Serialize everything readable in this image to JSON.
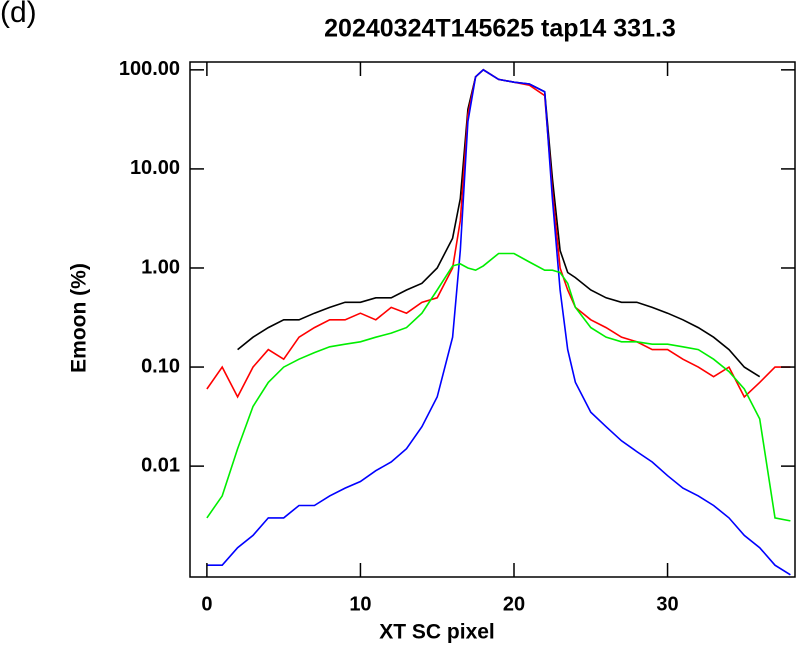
{
  "panel_label": "(d)",
  "chart_data": {
    "type": "line",
    "title": "20240324T145625 tap14  331.3",
    "x_label": "XT SC pixel",
    "y_label": "Emoon (%)",
    "log_y": true,
    "xlim": [
      -1.1,
      38.3
    ],
    "ylim": [
      0.00076,
      120
    ],
    "xticks": [
      0,
      10,
      20,
      30
    ],
    "yticks": [
      {
        "value": 100,
        "label": "100.00"
      },
      {
        "value": 10,
        "label": "10.00"
      },
      {
        "value": 1,
        "label": "1.00"
      },
      {
        "value": 0.1,
        "label": "0.10"
      },
      {
        "value": 0.01,
        "label": "0.01"
      }
    ],
    "x": [
      0,
      1,
      2,
      3,
      4,
      5,
      6,
      7,
      8,
      9,
      10,
      11,
      12,
      13,
      14,
      15,
      16,
      16.5,
      17,
      17.5,
      18,
      19,
      20,
      21,
      22,
      22.5,
      23,
      23.5,
      24,
      25,
      26,
      27,
      28,
      29,
      30,
      31,
      32,
      33,
      34,
      35,
      36,
      37,
      38
    ],
    "series": [
      {
        "color": "#000000",
        "values": [
          null,
          null,
          0.15,
          0.2,
          0.25,
          0.3,
          0.3,
          0.35,
          0.4,
          0.45,
          0.45,
          0.5,
          0.5,
          0.6,
          0.7,
          1.0,
          2.0,
          5,
          40,
          85,
          100,
          80,
          75,
          72,
          60,
          8,
          1.5,
          0.9,
          0.8,
          0.6,
          0.5,
          0.45,
          0.45,
          0.4,
          0.35,
          0.3,
          0.25,
          0.2,
          0.15,
          0.1,
          0.08,
          null,
          null
        ]
      },
      {
        "color": "#ff0000",
        "values": [
          0.06,
          0.1,
          0.05,
          0.1,
          0.15,
          0.12,
          0.2,
          0.25,
          0.3,
          0.3,
          0.35,
          0.3,
          0.4,
          0.35,
          0.45,
          0.5,
          1.0,
          3,
          35,
          85,
          100,
          80,
          75,
          70,
          55,
          6,
          1.0,
          0.6,
          0.4,
          0.3,
          0.25,
          0.2,
          0.18,
          0.15,
          0.15,
          0.12,
          0.1,
          0.08,
          0.1,
          0.05,
          0.07,
          0.1,
          0.1
        ]
      },
      {
        "color": "#0000ff",
        "values": [
          0.001,
          0.001,
          0.0015,
          0.002,
          0.003,
          0.003,
          0.004,
          0.004,
          0.005,
          0.006,
          0.007,
          0.009,
          0.011,
          0.015,
          0.025,
          0.05,
          0.2,
          1.5,
          30,
          85,
          100,
          80,
          75,
          72,
          60,
          5,
          0.6,
          0.15,
          0.07,
          0.035,
          0.025,
          0.018,
          0.014,
          0.011,
          0.008,
          0.006,
          0.005,
          0.004,
          0.003,
          0.002,
          0.0015,
          0.001,
          0.0008
        ]
      },
      {
        "color": "#00ee00",
        "values": [
          0.003,
          0.005,
          0.015,
          0.04,
          0.07,
          0.1,
          0.12,
          0.14,
          0.16,
          0.17,
          0.18,
          0.2,
          0.22,
          0.25,
          0.35,
          0.6,
          1.05,
          1.1,
          1.0,
          0.95,
          1.05,
          1.4,
          1.4,
          1.15,
          0.95,
          0.95,
          0.9,
          0.7,
          0.4,
          0.25,
          0.2,
          0.18,
          0.18,
          0.17,
          0.17,
          0.16,
          0.15,
          0.12,
          0.09,
          0.06,
          0.03,
          0.003,
          0.0028
        ]
      }
    ]
  }
}
